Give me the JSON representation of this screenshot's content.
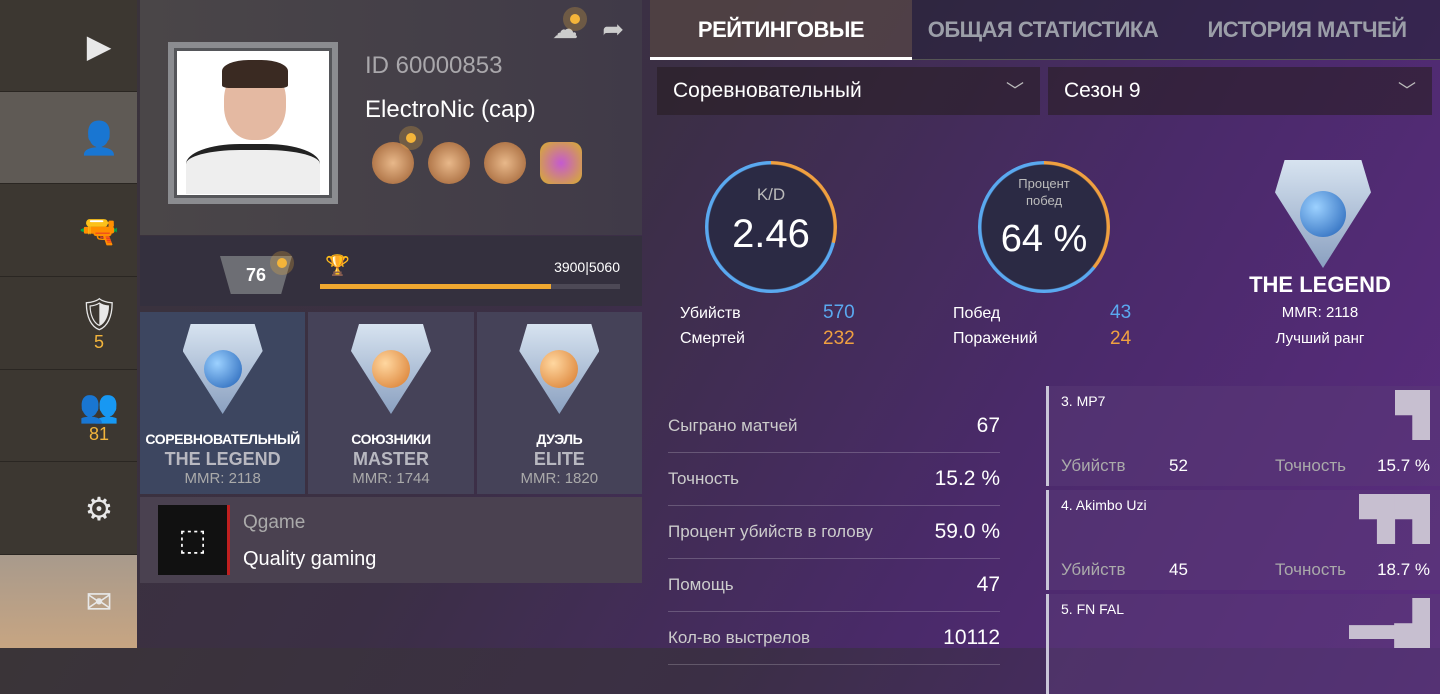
{
  "sidebar": {
    "items": [
      {
        "icon": "play-icon",
        "glyph": "▶"
      },
      {
        "icon": "profile-icon",
        "glyph": "👤",
        "active": true
      },
      {
        "icon": "pistol-icon",
        "glyph": "🔫"
      },
      {
        "icon": "rank-shield-icon",
        "glyph": "🛡",
        "count": "5"
      },
      {
        "icon": "friends-icon",
        "glyph": "👥",
        "count": "81"
      },
      {
        "icon": "settings-gear-icon",
        "glyph": "⚙"
      },
      {
        "icon": "mail-icon",
        "glyph": "✉"
      }
    ]
  },
  "profile": {
    "id": "ID 60000853",
    "name": "ElectroNic (cap)",
    "level": "76",
    "xp": "3900|5060",
    "xp_current": 3900,
    "xp_max": 5060,
    "top_icons": {
      "cloud": "☁",
      "share": "➦"
    }
  },
  "ranks": [
    {
      "mode": "СОРЕВНОВАТЕЛЬНЫЙ",
      "rank": "THE LEGEND",
      "mmr": "MMR: 2118"
    },
    {
      "mode": "СОЮЗНИКИ",
      "rank": "MASTER",
      "mmr": "MMR: 1744"
    },
    {
      "mode": "ДУЭЛЬ",
      "rank": "ELITE",
      "mmr": "MMR: 1820"
    }
  ],
  "clan": {
    "tag": "Qgame",
    "name": "Quality gaming"
  },
  "tabs": [
    "РЕЙТИНГОВЫЕ",
    "ОБЩАЯ СТАТИСТИКА",
    "ИСТОРИЯ МАТЧЕЙ"
  ],
  "filters": {
    "mode": "Соревновательный",
    "season": "Сезон 9",
    "chevron": "﹀"
  },
  "kd": {
    "label": "K/D",
    "value": "2.46",
    "kills_label": "Убийств",
    "kills": "570",
    "deaths_label": "Смертей",
    "deaths": "232"
  },
  "winrate": {
    "label": "Процент побед",
    "value": "64 %",
    "wins_label": "Побед",
    "wins": "43",
    "losses_label": "Поражений",
    "losses": "24"
  },
  "best": {
    "rank": "THE LEGEND",
    "mmr": "MMR: 2118",
    "label": "Лучший ранг"
  },
  "colors": {
    "blue": "#5aa9f0",
    "orange": "#f0a040"
  },
  "stats": [
    {
      "k": "Сыграно матчей",
      "v": "67"
    },
    {
      "k": "Точность",
      "v": "15.2 %"
    },
    {
      "k": "Процент убийств в голову",
      "v": "59.0 %"
    },
    {
      "k": "Помощь",
      "v": "47"
    },
    {
      "k": "Кол-во выстрелов",
      "v": "10112"
    }
  ],
  "weapons": [
    {
      "name": "3. MP7",
      "kills_label": "Убийств",
      "kills": "52",
      "acc_label": "Точность",
      "acc": "15.7 %"
    },
    {
      "name": "4. Akimbo Uzi",
      "kills_label": "Убийств",
      "kills": "45",
      "acc_label": "Точность",
      "acc": "18.7 %"
    },
    {
      "name": "5. FN FAL"
    }
  ]
}
